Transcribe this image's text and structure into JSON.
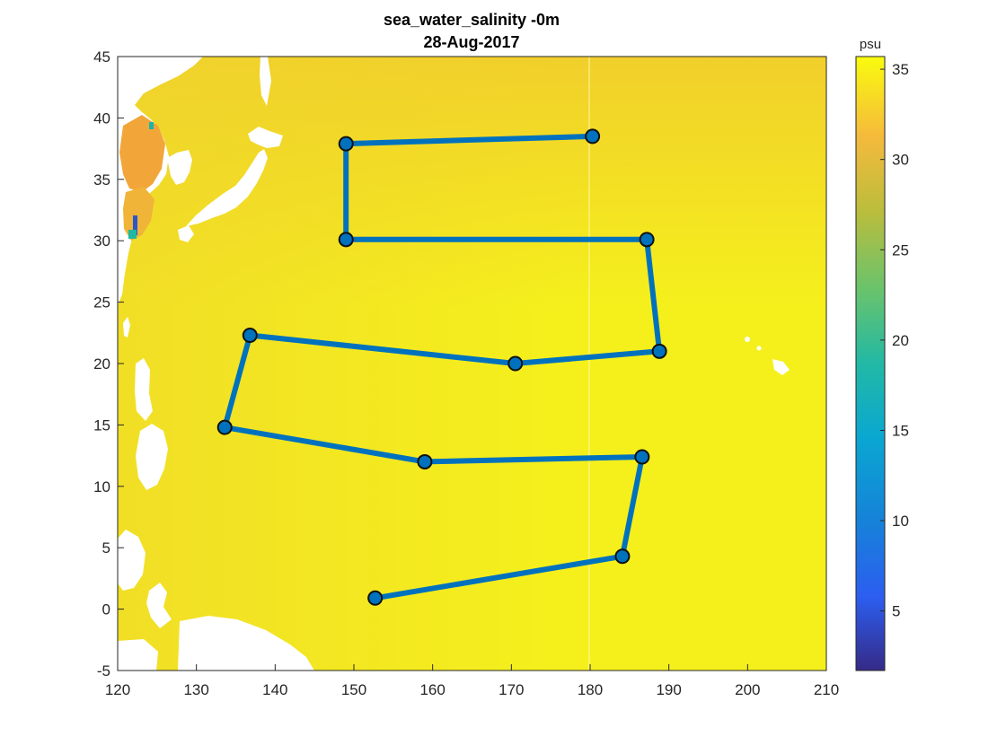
{
  "chart_data": {
    "type": "scatter",
    "title": "sea_water_salinity -0m",
    "subtitle": "28-Aug-2017",
    "xlim": [
      120,
      210
    ],
    "ylim": [
      -5,
      45
    ],
    "x_ticks": [
      120,
      130,
      140,
      150,
      160,
      170,
      180,
      190,
      200,
      210
    ],
    "y_ticks": [
      -5,
      0,
      5,
      10,
      15,
      20,
      25,
      30,
      35,
      40,
      45
    ],
    "grid": false,
    "colorbar": {
      "label": "psu",
      "range": [
        1.7,
        35.7
      ],
      "ticks": [
        5,
        10,
        15,
        20,
        25,
        30,
        35
      ],
      "colormap": "parula"
    },
    "route": {
      "color": "#0072bd",
      "points": [
        {
          "lon": 180.3,
          "lat": 38.5
        },
        {
          "lon": 149.0,
          "lat": 37.9
        },
        {
          "lon": 149.0,
          "lat": 30.1
        },
        {
          "lon": 187.2,
          "lat": 30.1
        },
        {
          "lon": 188.8,
          "lat": 21.0
        },
        {
          "lon": 170.5,
          "lat": 20.0
        },
        {
          "lon": 136.8,
          "lat": 22.3
        },
        {
          "lon": 133.6,
          "lat": 14.8
        },
        {
          "lon": 159.0,
          "lat": 12.0
        },
        {
          "lon": 186.6,
          "lat": 12.4
        },
        {
          "lon": 184.1,
          "lat": 4.3
        },
        {
          "lon": 152.7,
          "lat": 0.9
        }
      ]
    },
    "colors": {
      "ocean": "#f5f01c",
      "ocean_west": "#f0dd2a",
      "ocean_north": "#f2c62f",
      "land": "#ffffff",
      "axis": "#262626"
    }
  }
}
